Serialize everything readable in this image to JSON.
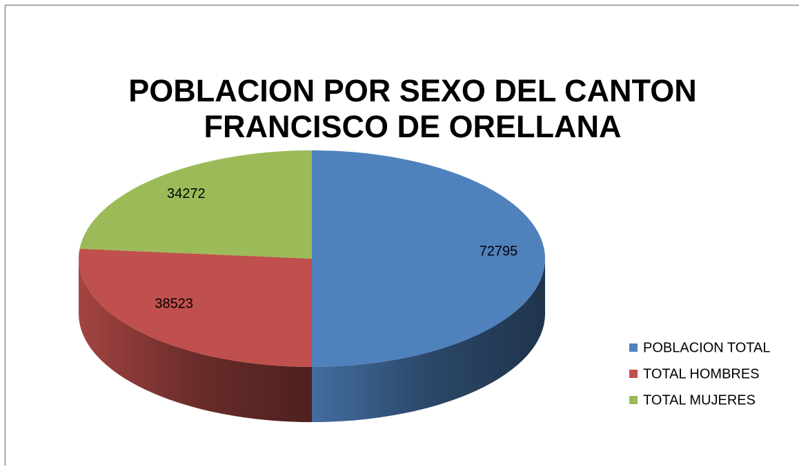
{
  "chart_data": {
    "type": "pie3d",
    "title": [
      "POBLACION POR SEXO DEL CANTON",
      "FRANCISCO DE ORELLANA"
    ],
    "categories": [
      "POBLACION TOTAL",
      "TOTAL HOMBRES",
      "TOTAL MUJERES"
    ],
    "values": [
      72795,
      38523,
      34272
    ],
    "colors": [
      "#4f81bd",
      "#c0504d",
      "#9bbb59"
    ],
    "legend": "right"
  }
}
